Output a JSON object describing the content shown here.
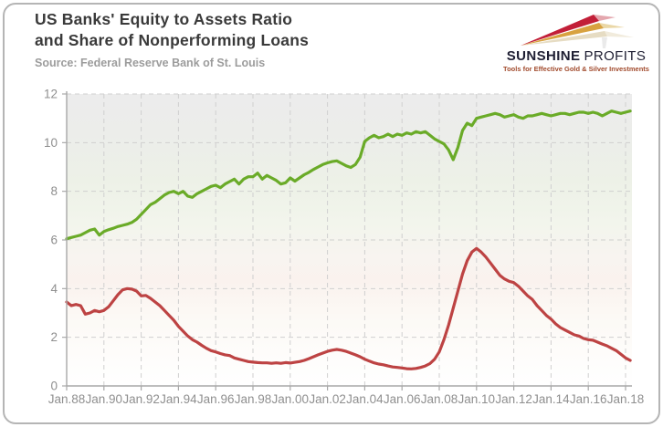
{
  "header": {
    "title_line1": "US Banks' Equity to Assets Ratio",
    "title_line2": "and Share of Nonperforming Loans",
    "source": "Source: Federal Reserve Bank of St. Louis"
  },
  "logo": {
    "name_primary": "SUNSHINE",
    "name_secondary": "PROFITS",
    "tagline": "Tools for Effective Gold & Silver Investments",
    "colors": {
      "ray_red": "#c21f38",
      "ray_gold": "#d8a240",
      "ray_cream": "#e6dcc3",
      "name_text": "#1e1e32",
      "tagline_text": "#a14a2c"
    }
  },
  "chart_data": {
    "type": "line",
    "title": "US Banks' Equity to Assets Ratio and Share of Nonperforming Loans",
    "source": "Source: Federal Reserve Bank of St. Louis",
    "x_start": 1988.0,
    "x_step": 0.25,
    "x_tick_years": [
      1988,
      1990,
      1992,
      1994,
      1996,
      1998,
      2000,
      2002,
      2004,
      2006,
      2008,
      2010,
      2012,
      2014,
      2016,
      2018
    ],
    "x_tick_labels": [
      "Jan.88",
      "Jan.90",
      "Jan.92",
      "Jan.94",
      "Jan.96",
      "Jan.98",
      "Jan.00",
      "Jan.02",
      "Jan.04",
      "Jan.06",
      "Jan.08",
      "Jan.10",
      "Jan.12",
      "Jan.14",
      "Jan.16",
      "Jan.18"
    ],
    "ylim": [
      0,
      12
    ],
    "y_ticks": [
      0,
      2,
      4,
      6,
      8,
      10,
      12
    ],
    "grid": "dashed-both-axes",
    "legend": "none",
    "plot_background": "vertical gradient: light gray top, pale green middle, pale pink lower-middle, white bottom",
    "series": [
      {
        "name": "Equity to assets ratio",
        "color": "#6aab28",
        "values": [
          6.05,
          6.1,
          6.15,
          6.2,
          6.3,
          6.4,
          6.45,
          6.2,
          6.35,
          6.42,
          6.48,
          6.55,
          6.6,
          6.65,
          6.72,
          6.85,
          7.05,
          7.25,
          7.45,
          7.55,
          7.7,
          7.85,
          7.95,
          8.0,
          7.9,
          8.0,
          7.8,
          7.75,
          7.9,
          8.0,
          8.1,
          8.2,
          8.25,
          8.15,
          8.3,
          8.4,
          8.5,
          8.3,
          8.5,
          8.6,
          8.6,
          8.75,
          8.5,
          8.65,
          8.55,
          8.45,
          8.3,
          8.35,
          8.55,
          8.42,
          8.55,
          8.68,
          8.78,
          8.9,
          9.0,
          9.1,
          9.17,
          9.22,
          9.25,
          9.15,
          9.05,
          8.98,
          9.1,
          9.4,
          10.05,
          10.2,
          10.3,
          10.2,
          10.25,
          10.35,
          10.25,
          10.35,
          10.3,
          10.4,
          10.35,
          10.45,
          10.4,
          10.45,
          10.3,
          10.15,
          10.05,
          9.95,
          9.7,
          9.3,
          9.8,
          10.5,
          10.8,
          10.7,
          11.0,
          11.05,
          11.1,
          11.15,
          11.2,
          11.15,
          11.05,
          11.1,
          11.15,
          11.05,
          11.0,
          11.1,
          11.1,
          11.15,
          11.2,
          11.15,
          11.1,
          11.15,
          11.2,
          11.2,
          11.15,
          11.2,
          11.25,
          11.25,
          11.2,
          11.25,
          11.2,
          11.1,
          11.2,
          11.3,
          11.25,
          11.2,
          11.25,
          11.3
        ]
      },
      {
        "name": "Share of nonperforming loans",
        "color": "#bd4343",
        "values": [
          3.45,
          3.3,
          3.35,
          3.3,
          2.95,
          3.0,
          3.1,
          3.05,
          3.1,
          3.25,
          3.5,
          3.75,
          3.95,
          4.0,
          3.98,
          3.9,
          3.7,
          3.72,
          3.6,
          3.45,
          3.3,
          3.1,
          2.9,
          2.7,
          2.45,
          2.25,
          2.05,
          1.9,
          1.8,
          1.67,
          1.55,
          1.45,
          1.4,
          1.33,
          1.28,
          1.25,
          1.15,
          1.1,
          1.05,
          1.0,
          0.98,
          0.96,
          0.95,
          0.95,
          0.93,
          0.95,
          0.93,
          0.96,
          0.94,
          0.97,
          1.0,
          1.05,
          1.12,
          1.2,
          1.28,
          1.35,
          1.42,
          1.47,
          1.5,
          1.47,
          1.42,
          1.35,
          1.28,
          1.2,
          1.1,
          1.02,
          0.95,
          0.9,
          0.87,
          0.82,
          0.78,
          0.76,
          0.74,
          0.71,
          0.7,
          0.72,
          0.76,
          0.82,
          0.92,
          1.1,
          1.4,
          1.9,
          2.5,
          3.2,
          3.9,
          4.6,
          5.15,
          5.5,
          5.65,
          5.5,
          5.3,
          5.05,
          4.8,
          4.55,
          4.4,
          4.3,
          4.25,
          4.1,
          3.9,
          3.7,
          3.55,
          3.3,
          3.1,
          2.9,
          2.75,
          2.55,
          2.4,
          2.3,
          2.2,
          2.1,
          2.05,
          1.95,
          1.9,
          1.88,
          1.8,
          1.72,
          1.65,
          1.55,
          1.45,
          1.3,
          1.15,
          1.05
        ]
      }
    ]
  },
  "style_colors": {
    "title_text": "#3a3a3a",
    "source_text": "#9c9c9c",
    "axis": "#a8a8a8",
    "gridline": "#cfcfcf",
    "axis_labels": "#8f8f8f",
    "card_border": "#b5b5b5"
  }
}
